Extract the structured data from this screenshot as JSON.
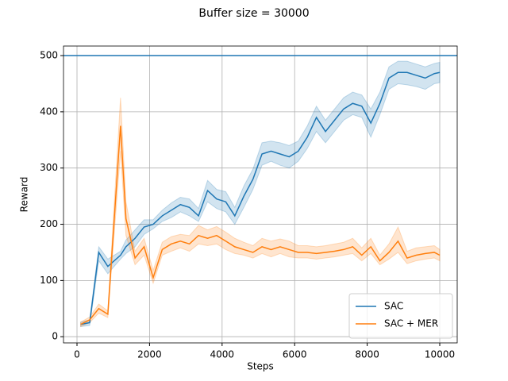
{
  "chart_data": {
    "type": "line",
    "title": "Buffer size = 30000",
    "x_label": "Steps",
    "y_label": "Reward",
    "x": [
      100,
      350,
      600,
      850,
      1200,
      1350,
      1600,
      1850,
      2100,
      2350,
      2600,
      2850,
      3100,
      3350,
      3600,
      3850,
      4100,
      4350,
      4600,
      4850,
      5100,
      5350,
      5600,
      5850,
      6100,
      6350,
      6600,
      6850,
      7100,
      7350,
      7600,
      7850,
      8100,
      8350,
      8600,
      8850,
      9100,
      9350,
      9600,
      9850,
      10000
    ],
    "series": [
      {
        "name": "SAC",
        "color": "#1f77b4",
        "values": [
          22,
          25,
          150,
          125,
          145,
          160,
          175,
          195,
          200,
          215,
          225,
          235,
          230,
          215,
          260,
          245,
          240,
          215,
          250,
          280,
          325,
          330,
          325,
          320,
          330,
          355,
          390,
          365,
          385,
          405,
          415,
          410,
          380,
          415,
          460,
          470,
          470,
          465,
          460,
          468,
          470
        ],
        "lower": [
          18,
          20,
          135,
          112,
          138,
          148,
          160,
          182,
          192,
          205,
          212,
          222,
          215,
          205,
          240,
          228,
          222,
          200,
          230,
          262,
          305,
          312,
          305,
          300,
          312,
          335,
          365,
          345,
          365,
          385,
          395,
          390,
          355,
          395,
          440,
          450,
          448,
          445,
          440,
          450,
          452
        ],
        "upper": [
          26,
          30,
          160,
          138,
          152,
          172,
          190,
          208,
          208,
          225,
          238,
          248,
          245,
          228,
          278,
          262,
          258,
          230,
          268,
          298,
          345,
          348,
          345,
          340,
          348,
          375,
          410,
          385,
          405,
          425,
          435,
          430,
          405,
          435,
          480,
          490,
          490,
          485,
          480,
          486,
          488
        ]
      },
      {
        "name": "SAC + MER",
        "color": "#ff7f0e",
        "values": [
          22,
          30,
          50,
          40,
          375,
          210,
          140,
          160,
          105,
          155,
          165,
          170,
          165,
          180,
          175,
          180,
          170,
          160,
          155,
          150,
          160,
          155,
          160,
          155,
          150,
          150,
          148,
          150,
          152,
          155,
          160,
          145,
          160,
          135,
          150,
          170,
          140,
          145,
          148,
          150,
          145
        ],
        "lower": [
          18,
          25,
          42,
          34,
          330,
          180,
          128,
          145,
          95,
          145,
          152,
          158,
          152,
          165,
          162,
          165,
          155,
          148,
          145,
          140,
          148,
          142,
          148,
          142,
          140,
          140,
          138,
          140,
          142,
          145,
          148,
          135,
          148,
          128,
          138,
          150,
          130,
          135,
          138,
          140,
          135
        ],
        "upper": [
          26,
          35,
          58,
          46,
          425,
          240,
          152,
          175,
          118,
          168,
          178,
          182,
          180,
          198,
          190,
          196,
          186,
          175,
          168,
          162,
          175,
          170,
          174,
          170,
          162,
          162,
          160,
          162,
          165,
          168,
          175,
          158,
          175,
          145,
          165,
          195,
          152,
          158,
          160,
          162,
          155
        ]
      }
    ],
    "hline": 500,
    "hline_color": "#1f77b4",
    "xlim": [
      -372,
      10481
    ],
    "ylim": [
      -11,
      517
    ],
    "xticks": [
      0,
      2000,
      4000,
      6000,
      8000,
      10000
    ],
    "yticks": [
      0,
      100,
      200,
      300,
      400,
      500
    ],
    "grid": true,
    "legend": "lower right"
  }
}
